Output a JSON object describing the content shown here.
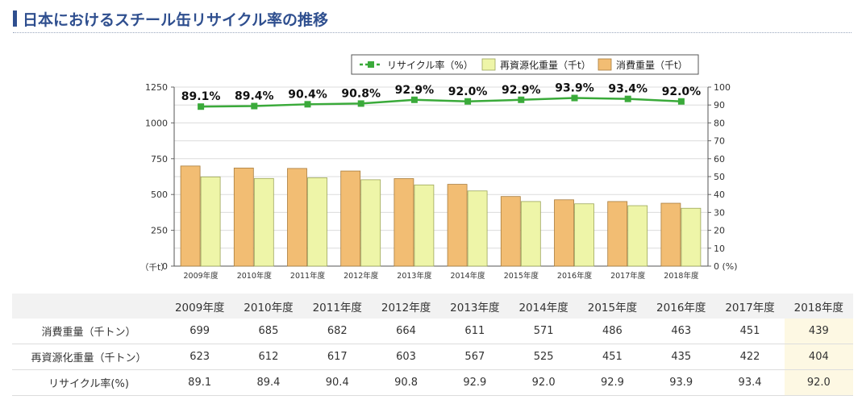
{
  "page": {
    "title": "日本におけるスチール缶リサイクル率の推移"
  },
  "chart_data": {
    "type": "bar",
    "categories": [
      "2009年度",
      "2010年度",
      "2011年度",
      "2012年度",
      "2013年度",
      "2014年度",
      "2015年度",
      "2016年度",
      "2017年度",
      "2018年度"
    ],
    "series": [
      {
        "name": "消費重量（千t）",
        "type": "bar",
        "axis": "left",
        "color": "#f2bd73",
        "values": [
          699,
          685,
          682,
          664,
          611,
          571,
          486,
          463,
          451,
          439
        ]
      },
      {
        "name": "再資源化重量（千t）",
        "type": "bar",
        "axis": "left",
        "color": "#eef5a8",
        "values": [
          623,
          612,
          617,
          603,
          567,
          525,
          451,
          435,
          422,
          404
        ]
      },
      {
        "name": "リサイクル率（%）",
        "type": "line",
        "axis": "right",
        "color": "#3aaa3a",
        "values": [
          89.1,
          89.4,
          90.4,
          90.8,
          92.9,
          92.0,
          92.9,
          93.9,
          93.4,
          92.0
        ],
        "labels": [
          "89.1%",
          "89.4%",
          "90.4%",
          "90.8%",
          "92.9%",
          "92.0%",
          "92.9%",
          "93.9%",
          "93.4%",
          "92.0%"
        ]
      }
    ],
    "left_axis": {
      "ylim": [
        0,
        1250
      ],
      "ticks": [
        "0",
        "250",
        "500",
        "750",
        "1000",
        "1250"
      ],
      "unit": "（千t）"
    },
    "right_axis": {
      "ylim": [
        0,
        100
      ],
      "ticks": [
        "0",
        "10",
        "20",
        "30",
        "40",
        "50",
        "60",
        "70",
        "80",
        "90",
        "100"
      ],
      "unit": "(%)"
    },
    "grid": true,
    "legend_placement": "top-right",
    "legend": [
      "リサイクル率（%）",
      "再資源化重量（千t）",
      "消費重量（千t）"
    ]
  },
  "table": {
    "headers": [
      "2009年度",
      "2010年度",
      "2011年度",
      "2012年度",
      "2013年度",
      "2014年度",
      "2015年度",
      "2016年度",
      "2017年度",
      "2018年度"
    ],
    "rows": [
      {
        "label": "消費重量（千トン）",
        "values": [
          "699",
          "685",
          "682",
          "664",
          "611",
          "571",
          "486",
          "463",
          "451",
          "439"
        ]
      },
      {
        "label": "再資源化重量（千トン）",
        "values": [
          "623",
          "612",
          "617",
          "603",
          "567",
          "525",
          "451",
          "435",
          "422",
          "404"
        ]
      },
      {
        "label": "リサイクル率(%)",
        "values": [
          "89.1",
          "89.4",
          "90.4",
          "90.8",
          "92.9",
          "92.0",
          "92.9",
          "93.9",
          "93.4",
          "92.0"
        ]
      }
    ],
    "highlight_color": "#fdf8e3"
  }
}
